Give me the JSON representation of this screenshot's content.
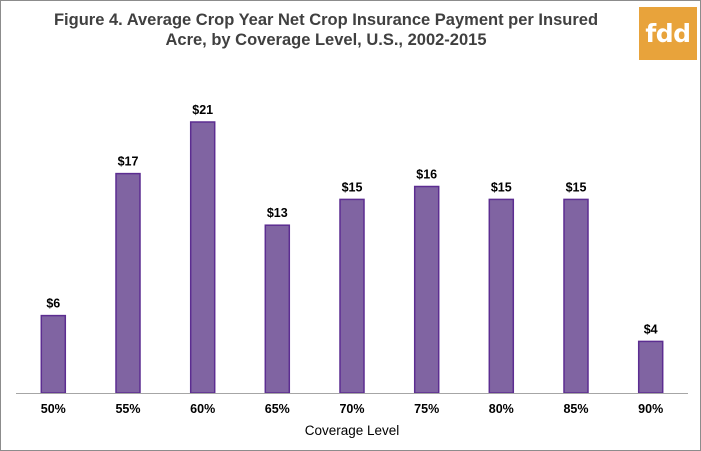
{
  "chart_data": {
    "type": "bar",
    "title_lines": [
      "Figure 4. Average Crop Year Net Crop Insurance Payment per Insured",
      "Acre, by Coverage Level, U.S., 2002-2015"
    ],
    "xlabel": "Coverage Level",
    "ylabel": "",
    "categories": [
      "50%",
      "55%",
      "60%",
      "65%",
      "70%",
      "75%",
      "80%",
      "85%",
      "90%"
    ],
    "values": [
      6,
      17,
      21,
      13,
      15,
      16,
      15,
      15,
      4
    ],
    "value_labels": [
      "$6",
      "$17",
      "$21",
      "$13",
      "$15",
      "$16",
      "$15",
      "$15",
      "$4"
    ],
    "ylim": [
      0,
      21
    ],
    "grid": false,
    "legend": "none",
    "colors": {
      "bar_fill": "#8064a2",
      "bar_stroke": "#5c2d91",
      "axis": "#a6a6a6"
    }
  },
  "logo": {
    "text": "fdd",
    "color": "#e8a33b"
  }
}
